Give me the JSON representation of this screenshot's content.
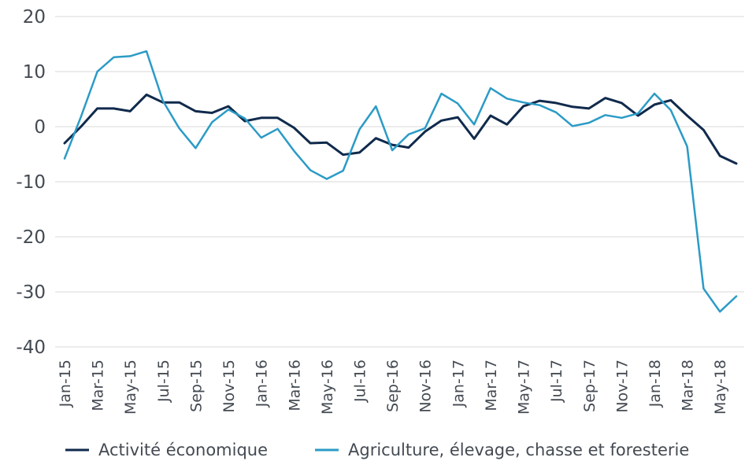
{
  "chart_data": {
    "type": "line",
    "title": "",
    "xlabel": "",
    "ylabel": "",
    "ylim": [
      -40,
      20
    ],
    "yticks": [
      20,
      10,
      0,
      -10,
      -20,
      -30,
      -40
    ],
    "grid": true,
    "legend_position": "bottom",
    "x": [
      "Jan-15",
      "Feb-15",
      "Mar-15",
      "Apr-15",
      "May-15",
      "Jun-15",
      "Jul-15",
      "Aug-15",
      "Sep-15",
      "Oct-15",
      "Nov-15",
      "Dec-15",
      "Jan-16",
      "Feb-16",
      "Mar-16",
      "Apr-16",
      "May-16",
      "Jun-16",
      "Jul-16",
      "Aug-16",
      "Sep-16",
      "Oct-16",
      "Nov-16",
      "Dec-16",
      "Jan-17",
      "Feb-17",
      "Mar-17",
      "Apr-17",
      "May-17",
      "Jun-17",
      "Jul-17",
      "Aug-17",
      "Sep-17",
      "Oct-17",
      "Nov-17",
      "Dec-17",
      "Jan-18",
      "Feb-18",
      "Mar-18",
      "Apr-18",
      "May-18",
      "Jun-18"
    ],
    "xtick_labels": [
      "Jan-15",
      "Mar-15",
      "May-15",
      "Jul-15",
      "Sep-15",
      "Nov-15",
      "Jan-16",
      "Mar-16",
      "May-16",
      "Jul-16",
      "Sep-16",
      "Nov-16",
      "Jan-17",
      "Mar-17",
      "May-17",
      "Jul-17",
      "Sep-17",
      "Nov-17",
      "Jan-18",
      "Mar-18",
      "May-18"
    ],
    "series": [
      {
        "name": "Activité économique",
        "color": "#102a4c",
        "values": [
          -3,
          0,
          3.3,
          3.3,
          2.8,
          5.8,
          4.4,
          4.4,
          2.8,
          2.5,
          3.7,
          1,
          1.6,
          1.6,
          -0.2,
          -3,
          -2.9,
          -5.1,
          -4.7,
          -2.1,
          -3.3,
          -3.8,
          -0.9,
          1.1,
          1.7,
          -2.2,
          2,
          0.4,
          3.7,
          4.7,
          4.3,
          3.6,
          3.3,
          5.2,
          4.3,
          2,
          4,
          4.8,
          2,
          -0.6,
          -5.3,
          -6.7
        ]
      },
      {
        "name": "Agriculture, élevage, chasse et foresterie",
        "color": "#2b9bc6",
        "values": [
          -5.8,
          1.8,
          10,
          12.6,
          12.8,
          13.7,
          4.7,
          -0.3,
          -3.9,
          0.8,
          3.1,
          1.5,
          -2,
          -0.4,
          -4.4,
          -7.9,
          -9.5,
          -8,
          -0.5,
          3.7,
          -4.3,
          -1.4,
          -0.3,
          6,
          4.2,
          0.4,
          7,
          5.1,
          4.4,
          3.9,
          2.6,
          0.1,
          0.7,
          2.1,
          1.6,
          2.4,
          6,
          3,
          -3.6,
          -29.4,
          -33.6,
          -30.8
        ]
      }
    ]
  }
}
